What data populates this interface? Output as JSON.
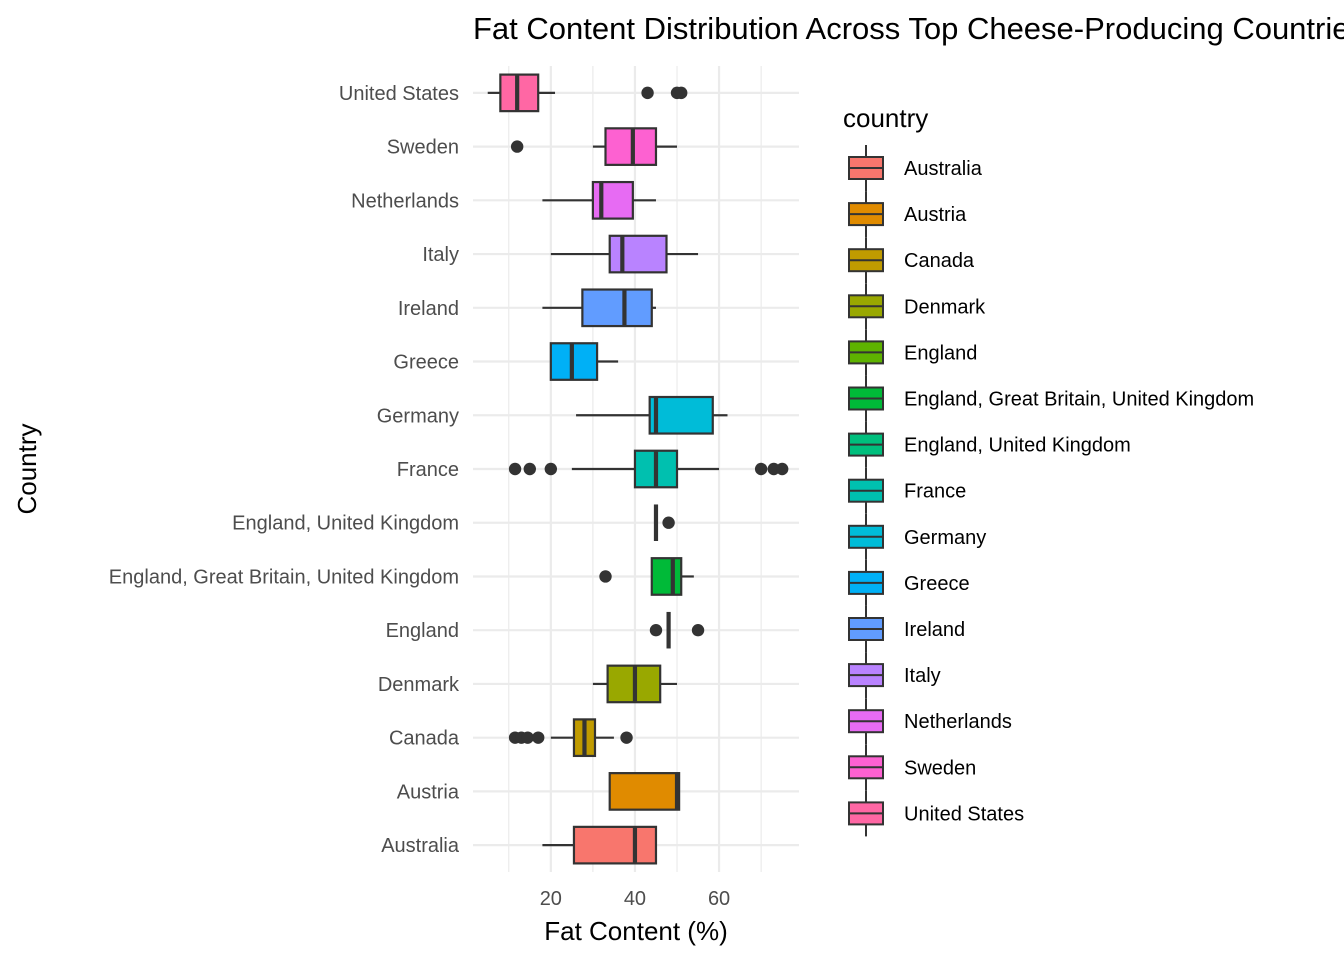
{
  "chart_data": {
    "type": "boxplot",
    "title": "Fat Content Distribution Across Top Cheese-Producing Countries",
    "xlabel": "Fat Content (%)",
    "ylabel": "Country",
    "xlim": [
      1.5,
      79
    ],
    "x_ticks": [
      20,
      40,
      60
    ],
    "x_minor_ticks": [
      10,
      30,
      50,
      70
    ],
    "orientation": "horizontal",
    "grid": true,
    "legend": {
      "title": "country",
      "position": "right"
    },
    "categories": [
      "Australia",
      "Austria",
      "Canada",
      "Denmark",
      "England",
      "England, Great Britain, United Kingdom",
      "England, United Kingdom",
      "France",
      "Germany",
      "Greece",
      "Ireland",
      "Italy",
      "Netherlands",
      "Sweden",
      "United States"
    ],
    "series": [
      {
        "name": "Australia",
        "color": "#F8766D",
        "whisker_low": 18,
        "q1": 25.5,
        "median": 40,
        "q3": 45,
        "whisker_high": 45,
        "outliers": []
      },
      {
        "name": "Austria",
        "color": "#E08B00",
        "whisker_low": 34,
        "q1": 34,
        "median": 50,
        "q3": 50.5,
        "whisker_high": 50.5,
        "outliers": []
      },
      {
        "name": "Canada",
        "color": "#C09B00",
        "whisker_low": 20,
        "q1": 25.5,
        "median": 28,
        "q3": 30.5,
        "whisker_high": 35,
        "outliers": [
          11.5,
          13,
          14.5,
          17,
          38
        ]
      },
      {
        "name": "Denmark",
        "color": "#99A800",
        "whisker_low": 30,
        "q1": 33.5,
        "median": 40,
        "q3": 46,
        "whisker_high": 50,
        "outliers": []
      },
      {
        "name": "England",
        "color": "#5EB300",
        "whisker_low": 48,
        "q1": 48,
        "median": 48,
        "q3": 48,
        "whisker_high": 48,
        "outliers": [
          45,
          55
        ]
      },
      {
        "name": "England, Great Britain, United Kingdom",
        "color": "#00BA38",
        "whisker_low": 44,
        "q1": 44,
        "median": 49,
        "q3": 51,
        "whisker_high": 54,
        "outliers": [
          33
        ]
      },
      {
        "name": "England, United Kingdom",
        "color": "#00BF7D",
        "whisker_low": 45,
        "q1": 45,
        "median": 45,
        "q3": 45,
        "whisker_high": 45,
        "outliers": [
          48
        ]
      },
      {
        "name": "France",
        "color": "#00C0AF",
        "whisker_low": 25,
        "q1": 40,
        "median": 45,
        "q3": 50,
        "whisker_high": 60,
        "outliers": [
          11.5,
          15,
          20,
          70,
          73,
          75
        ]
      },
      {
        "name": "Germany",
        "color": "#00BCD8",
        "whisker_low": 26,
        "q1": 43.5,
        "median": 45,
        "q3": 58.5,
        "whisker_high": 62,
        "outliers": []
      },
      {
        "name": "Greece",
        "color": "#00B0F6",
        "whisker_low": 20,
        "q1": 20,
        "median": 25,
        "q3": 31,
        "whisker_high": 36,
        "outliers": []
      },
      {
        "name": "Ireland",
        "color": "#619CFF",
        "whisker_low": 18,
        "q1": 27.5,
        "median": 37.5,
        "q3": 44,
        "whisker_high": 45,
        "outliers": []
      },
      {
        "name": "Italy",
        "color": "#B983FF",
        "whisker_low": 20,
        "q1": 34,
        "median": 37,
        "q3": 47.5,
        "whisker_high": 55,
        "outliers": []
      },
      {
        "name": "Netherlands",
        "color": "#E76BF3",
        "whisker_low": 18,
        "q1": 30,
        "median": 32,
        "q3": 39.5,
        "whisker_high": 45,
        "outliers": []
      },
      {
        "name": "Sweden",
        "color": "#FD61D1",
        "whisker_low": 30,
        "q1": 33,
        "median": 39.5,
        "q3": 45,
        "whisker_high": 50,
        "outliers": [
          12
        ]
      },
      {
        "name": "United States",
        "color": "#FF67A4",
        "whisker_low": 5,
        "q1": 8,
        "median": 12,
        "q3": 17,
        "whisker_high": 21,
        "outliers": [
          43,
          50,
          51
        ]
      }
    ]
  }
}
